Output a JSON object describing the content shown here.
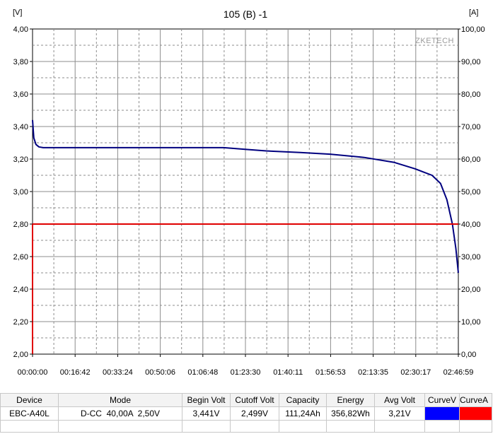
{
  "chart_data": {
    "type": "line",
    "title": "105 (B) -1",
    "watermark": "ZKETECH",
    "y_left_unit": "[V]",
    "y_right_unit": "[A]",
    "ylim_left": [
      2.0,
      4.0
    ],
    "ylim_right": [
      0,
      100
    ],
    "y_left_ticks": [
      "4,00",
      "3,80",
      "3,60",
      "3,40",
      "3,20",
      "3,00",
      "2,80",
      "2,60",
      "2,40",
      "2,20",
      "2,00"
    ],
    "y_right_ticks": [
      "100,00",
      "90,00",
      "80,00",
      "70,00",
      "60,00",
      "50,00",
      "40,00",
      "30,00",
      "20,00",
      "10,00",
      "0,00"
    ],
    "x_ticks": [
      "00:00:00",
      "00:16:42",
      "00:33:24",
      "00:50:06",
      "01:06:48",
      "01:23:30",
      "01:40:11",
      "01:56:53",
      "02:13:35",
      "02:30:17",
      "02:46:59"
    ],
    "x_range_seconds": [
      0,
      10019
    ],
    "grid": true,
    "series": [
      {
        "axis": "left",
        "color": "#00007f",
        "x_seconds": [
          0,
          30,
          80,
          150,
          250,
          400,
          700,
          1500,
          3000,
          4500,
          5000,
          5500,
          6300,
          7000,
          7800,
          8500,
          9000,
          9200,
          9400,
          9600,
          9750,
          9880,
          9960,
          10019
        ],
        "values": [
          3.44,
          3.33,
          3.29,
          3.275,
          3.27,
          3.27,
          3.27,
          3.27,
          3.27,
          3.27,
          3.26,
          3.25,
          3.24,
          3.23,
          3.21,
          3.18,
          3.14,
          3.12,
          3.1,
          3.05,
          2.95,
          2.8,
          2.65,
          2.5
        ]
      },
      {
        "axis": "right",
        "color": "#e00000",
        "x_seconds": [
          0,
          0,
          10019
        ],
        "values": [
          0,
          40,
          40
        ]
      }
    ]
  },
  "table": {
    "headers": [
      "Device",
      "Mode",
      "Begin Volt",
      "Cutoff Volt",
      "Capacity",
      "Energy",
      "Avg Volt",
      "CurveV",
      "CurveA"
    ],
    "row": [
      "EBC-A40L",
      "D-CC  40,00A  2,50V",
      "3,441V",
      "2,499V",
      "111,24Ah",
      "356,82Wh",
      "3,21V"
    ],
    "curve_colors": [
      "#0000ff",
      "#ff0000"
    ]
  }
}
